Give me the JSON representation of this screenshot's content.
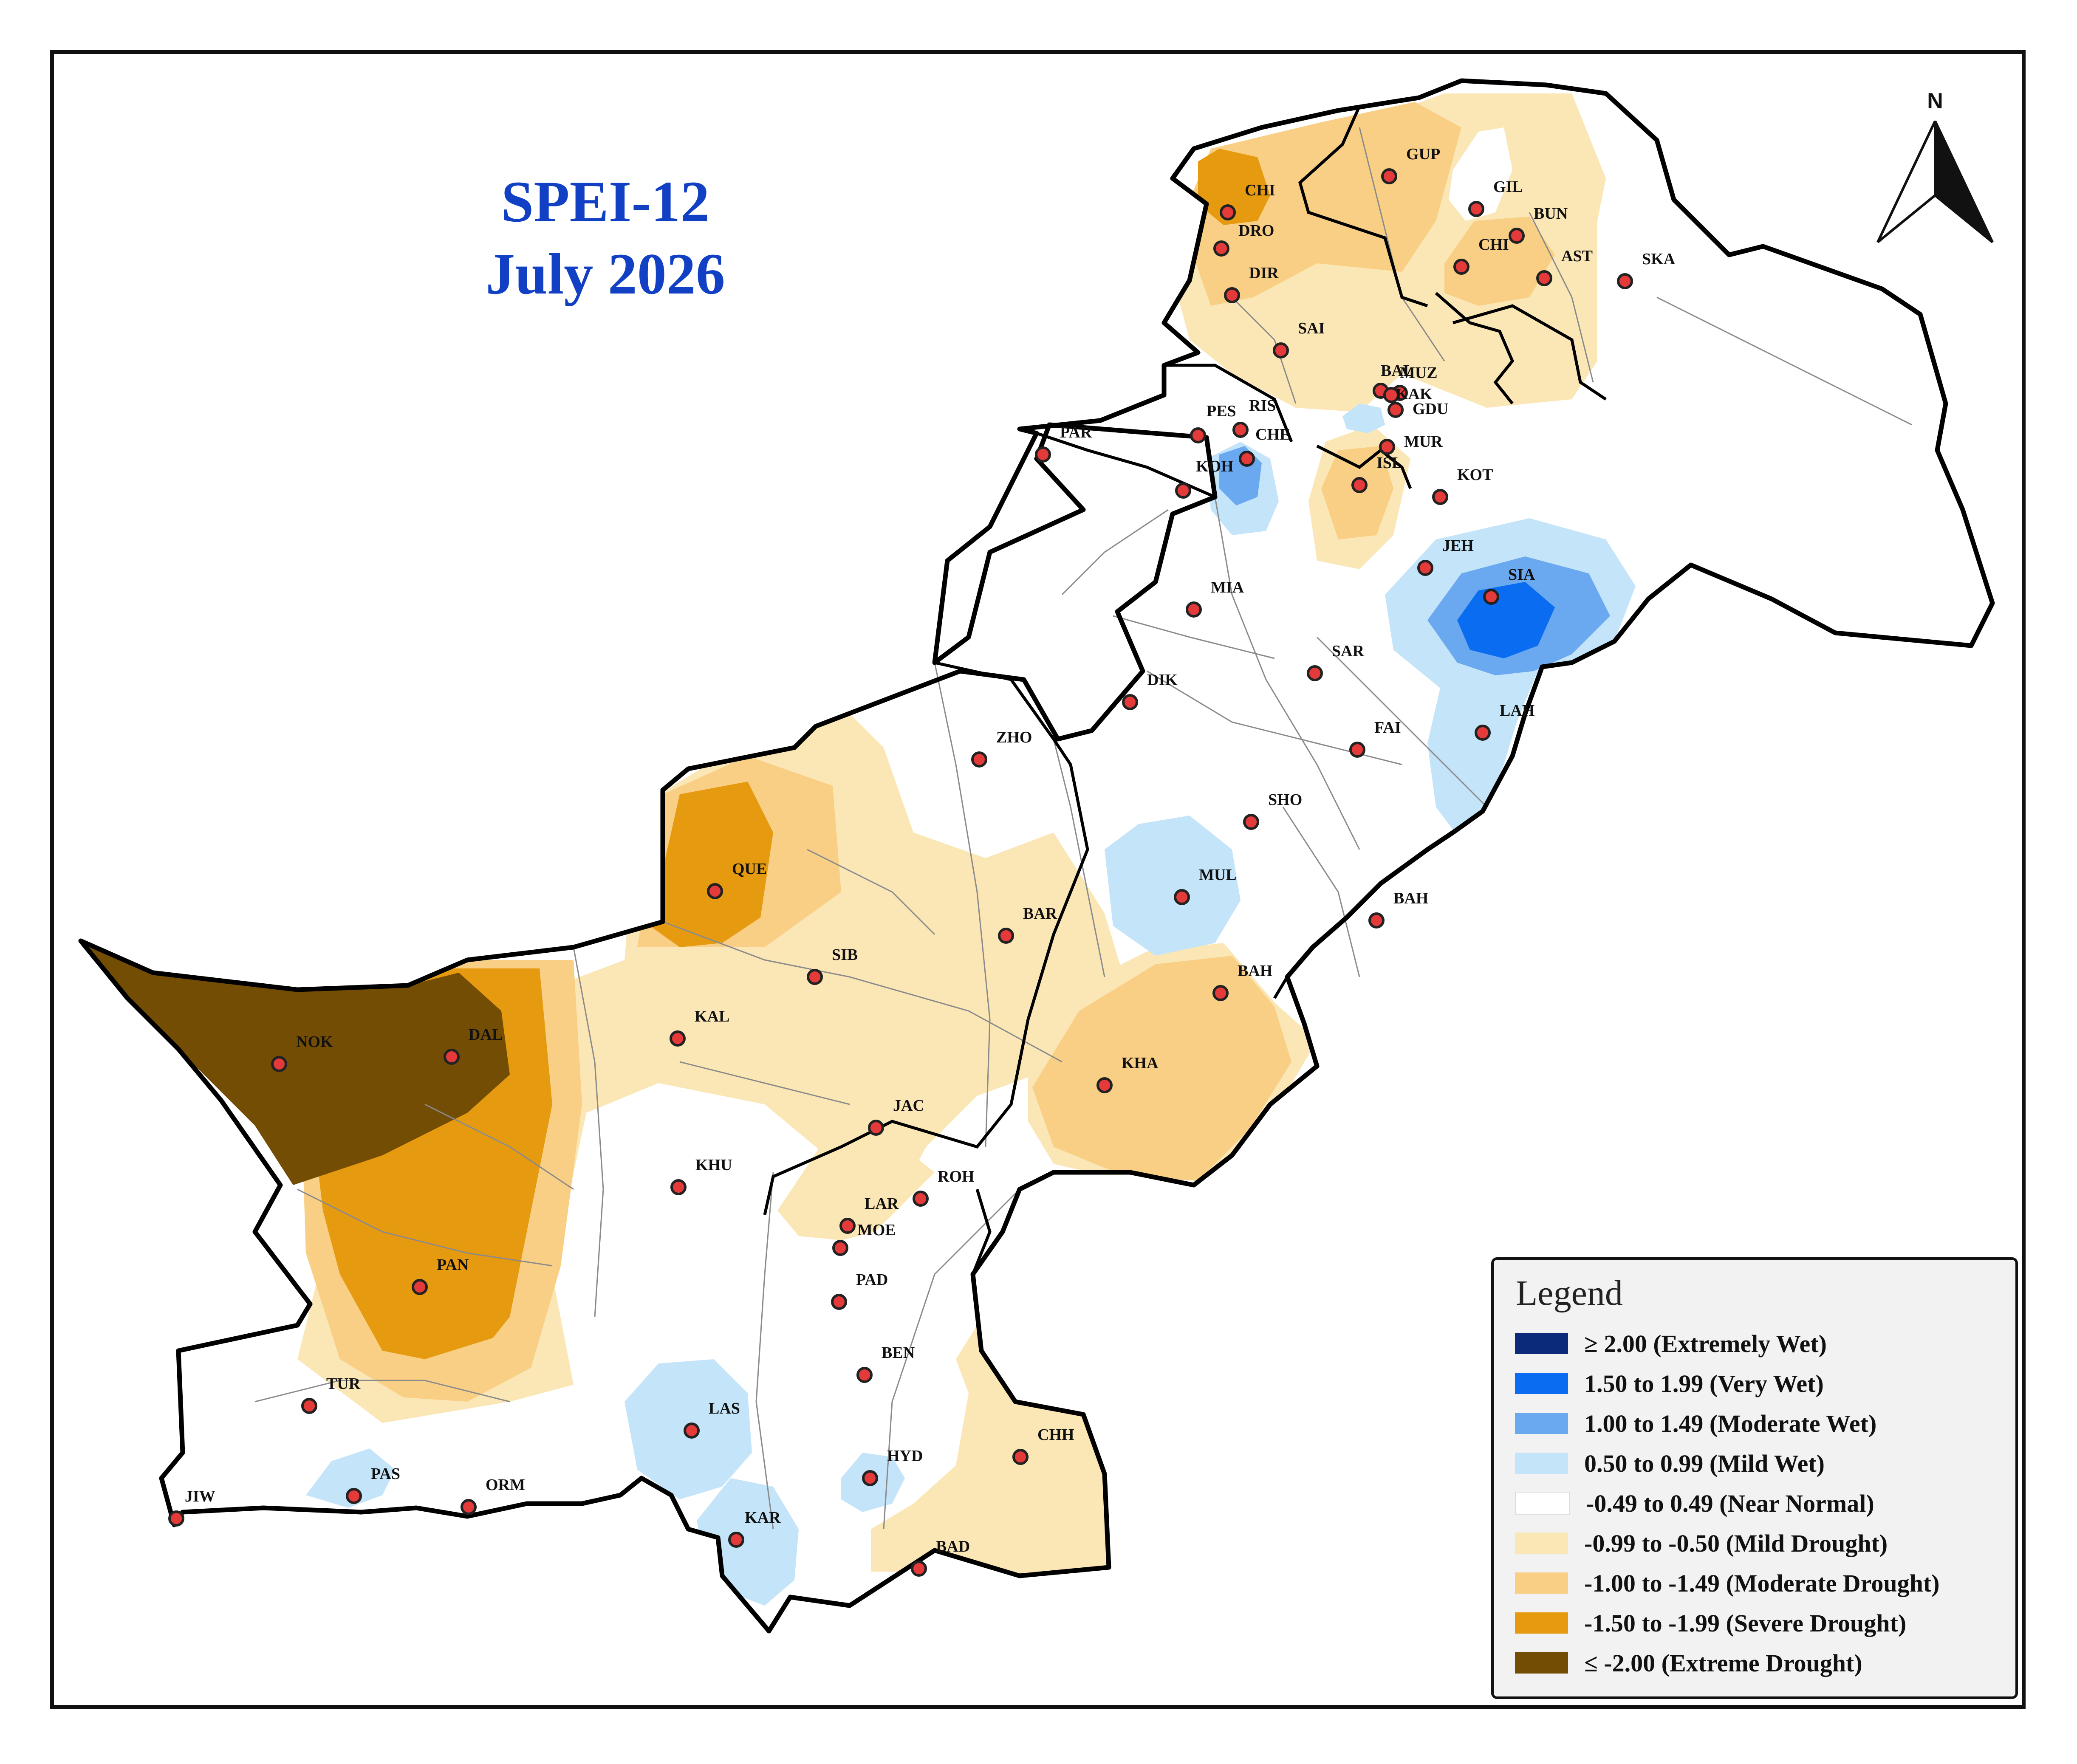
{
  "title": {
    "line1": "SPEI-12",
    "line2": "July 2026"
  },
  "north_label": "N",
  "legend": {
    "title": "Legend",
    "items": [
      {
        "label": "≥ 2.00 (Extremely Wet)",
        "color": "#0b2a7a"
      },
      {
        "label": "1.50 to 1.99 (Very Wet)",
        "color": "#0a6cf0"
      },
      {
        "label": "1.00 to 1.49 (Moderate Wet)",
        "color": "#6aa8f0"
      },
      {
        "label": "0.50 to 0.99 (Mild Wet)",
        "color": "#c4e4f9"
      },
      {
        "label": "-0.49 to 0.49 (Near Normal)",
        "color": "#ffffff"
      },
      {
        "label": "-0.99 to -0.50 (Mild Drought)",
        "color": "#fbe7b6"
      },
      {
        "label": "-1.00 to -1.49 (Moderate Drought)",
        "color": "#f9cf85"
      },
      {
        "label": "-1.50 to -1.99 (Severe Drought)",
        "color": "#e59a10"
      },
      {
        "label": "≤ -2.00 (Extreme Drought)",
        "color": "#744d05"
      }
    ]
  },
  "stations": [
    {
      "code": "CHI"
    },
    {
      "code": "DRO"
    },
    {
      "code": "DIR"
    },
    {
      "code": "SAI"
    },
    {
      "code": "GUP"
    },
    {
      "code": "GIL"
    },
    {
      "code": "BUN"
    },
    {
      "code": "CHI"
    },
    {
      "code": "AST"
    },
    {
      "code": "SKA"
    },
    {
      "code": "BAL"
    },
    {
      "code": "MUZ"
    },
    {
      "code": "KAK"
    },
    {
      "code": "GDU"
    },
    {
      "code": "MUR"
    },
    {
      "code": "ISL"
    },
    {
      "code": "RIS"
    },
    {
      "code": "PES"
    },
    {
      "code": "CHE"
    },
    {
      "code": "KOH"
    },
    {
      "code": "PAR"
    },
    {
      "code": "KOT"
    },
    {
      "code": "JEH"
    },
    {
      "code": "SIA"
    },
    {
      "code": "MIA"
    },
    {
      "code": "SAR"
    },
    {
      "code": "DIK"
    },
    {
      "code": "LAH"
    },
    {
      "code": "FAI"
    },
    {
      "code": "ZHO"
    },
    {
      "code": "SHO"
    },
    {
      "code": "QUE"
    },
    {
      "code": "MUL"
    },
    {
      "code": "BAH"
    },
    {
      "code": "BAR"
    },
    {
      "code": "SIB"
    },
    {
      "code": "BAH"
    },
    {
      "code": "NOK"
    },
    {
      "code": "DAL"
    },
    {
      "code": "KAL"
    },
    {
      "code": "KHA"
    },
    {
      "code": "JAC"
    },
    {
      "code": "KHU"
    },
    {
      "code": "ROH"
    },
    {
      "code": "LAR"
    },
    {
      "code": "MOE"
    },
    {
      "code": "PAN"
    },
    {
      "code": "PAD"
    },
    {
      "code": "BEN"
    },
    {
      "code": "TUR"
    },
    {
      "code": "LAS"
    },
    {
      "code": "CHH"
    },
    {
      "code": "HYD"
    },
    {
      "code": "PAS"
    },
    {
      "code": "ORM"
    },
    {
      "code": "JIW"
    },
    {
      "code": "KAR"
    },
    {
      "code": "BAD"
    }
  ]
}
